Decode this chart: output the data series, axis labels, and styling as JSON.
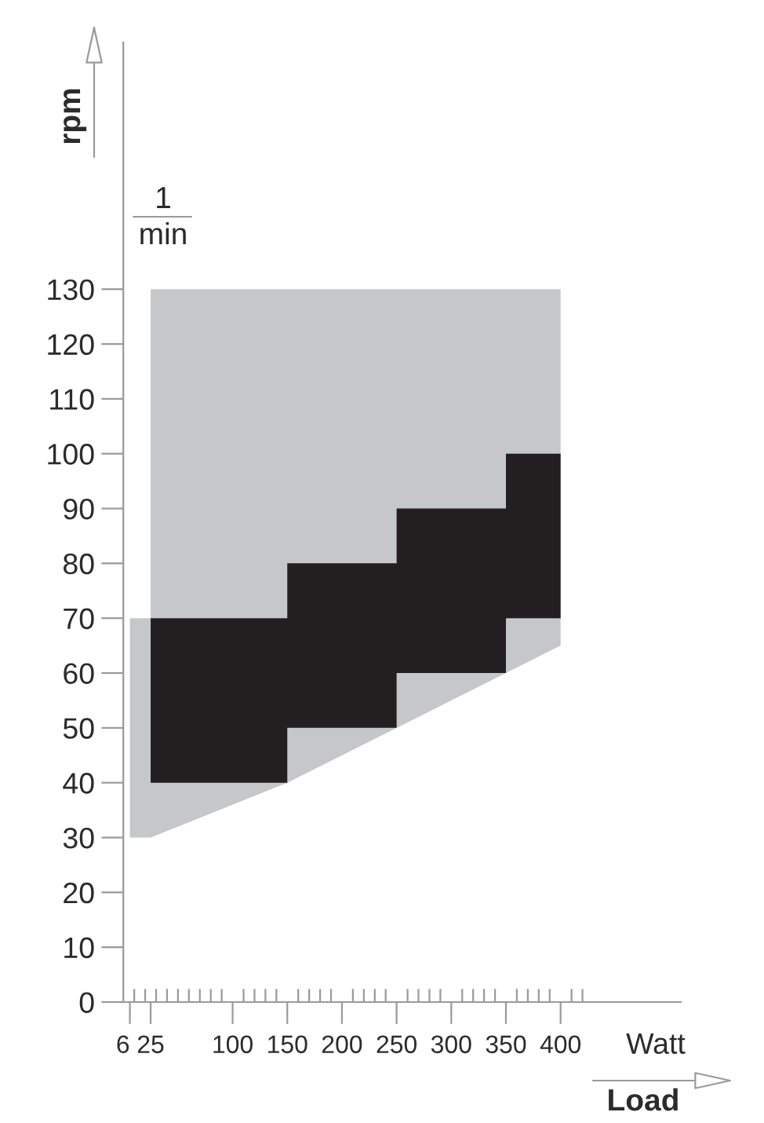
{
  "chart_data": {
    "type": "area",
    "xlabel": "Load",
    "ylabel": "rpm",
    "annotations": [
      "1\nmin",
      "Watt"
    ],
    "xlim": [
      0,
      510
    ],
    "ylim": [
      0,
      175
    ],
    "xticks": [
      {
        "value": 6,
        "label": "6"
      },
      {
        "value": 10,
        "label": null
      },
      {
        "value": 20,
        "label": null
      },
      25,
      {
        "value": 30,
        "label": null
      },
      {
        "value": 40,
        "label": null
      },
      {
        "value": 50,
        "label": null
      },
      {
        "value": 60,
        "label": null
      },
      {
        "value": 70,
        "label": null
      },
      {
        "value": 80,
        "label": null
      },
      {
        "value": 90,
        "label": null
      },
      100,
      {
        "value": 110,
        "label": null
      },
      {
        "value": 120,
        "label": null
      },
      {
        "value": 130,
        "label": null
      },
      {
        "value": 140,
        "label": null
      },
      150,
      {
        "value": 160,
        "label": null
      },
      {
        "value": 170,
        "label": null
      },
      {
        "value": 180,
        "label": null
      },
      {
        "value": 190,
        "label": null
      },
      200,
      {
        "value": 210,
        "label": null
      },
      {
        "value": 220,
        "label": null
      },
      {
        "value": 230,
        "label": null
      },
      {
        "value": 240,
        "label": null
      },
      250,
      {
        "value": 260,
        "label": null
      },
      {
        "value": 270,
        "label": null
      },
      {
        "value": 280,
        "label": null
      },
      {
        "value": 290,
        "label": null
      },
      300,
      {
        "value": 310,
        "label": null
      },
      {
        "value": 320,
        "label": null
      },
      {
        "value": 330,
        "label": null
      },
      {
        "value": 340,
        "label": null
      },
      350,
      {
        "value": 360,
        "label": null
      },
      {
        "value": 370,
        "label": null
      },
      {
        "value": 380,
        "label": null
      },
      {
        "value": 390,
        "label": null
      },
      400,
      {
        "value": 410,
        "label": null
      },
      {
        "value": 420,
        "label": null
      }
    ],
    "yticks": [
      0,
      10,
      20,
      30,
      40,
      50,
      60,
      70,
      80,
      90,
      100,
      110,
      120,
      130
    ],
    "series": [
      {
        "color": "#c6c7c9",
        "x": [
          6,
          25,
          25,
          150,
          400
        ],
        "values": [
          null,
          null,
          null,
          null,
          null
        ],
        "lower": [
          30,
          30,
          30,
          40,
          65
        ],
        "upper": [
          70,
          70,
          130,
          130,
          130
        ]
      },
      {
        "color": "#231f20",
        "x": [
          25,
          150,
          150,
          250,
          250,
          350,
          350,
          400
        ],
        "values": [
          null,
          null,
          null,
          null,
          null,
          null,
          null,
          null
        ],
        "lower": [
          40,
          40,
          50,
          50,
          60,
          60,
          70,
          70
        ],
        "upper": [
          70,
          70,
          80,
          80,
          90,
          90,
          100,
          100
        ]
      }
    ]
  }
}
